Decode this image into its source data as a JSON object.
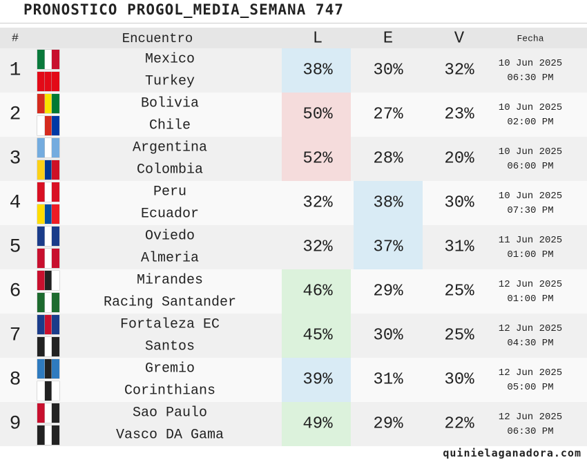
{
  "header": {
    "title": "PRONOSTICO PROGOL_MEDIA_SEMANA 747"
  },
  "table": {
    "columns": [
      "#",
      "Encuentro",
      "L",
      "E",
      "V",
      "Fecha"
    ],
    "rows": [
      {
        "num": "1",
        "home": "Mexico",
        "away": "Turkey",
        "L": "38%",
        "E": "30%",
        "V": "32%",
        "date": "10 Jun 2025",
        "time": "06:30 PM",
        "highlight": "L",
        "highlight_color": "#d9ebf5"
      },
      {
        "num": "2",
        "home": "Bolivia",
        "away": "Chile",
        "L": "50%",
        "E": "27%",
        "V": "23%",
        "date": "10 Jun 2025",
        "time": "02:00 PM",
        "highlight": "L",
        "highlight_color": "#f5dcdc"
      },
      {
        "num": "3",
        "home": "Argentina",
        "away": "Colombia",
        "L": "52%",
        "E": "28%",
        "V": "20%",
        "date": "10 Jun 2025",
        "time": "06:00 PM",
        "highlight": "L",
        "highlight_color": "#f5dcdc"
      },
      {
        "num": "4",
        "home": "Peru",
        "away": "Ecuador",
        "L": "32%",
        "E": "38%",
        "V": "30%",
        "date": "10 Jun 2025",
        "time": "07:30 PM",
        "highlight": "E",
        "highlight_color": "#d9ebf5"
      },
      {
        "num": "5",
        "home": "Oviedo",
        "away": "Almeria",
        "L": "32%",
        "E": "37%",
        "V": "31%",
        "date": "11 Jun 2025",
        "time": "01:00 PM",
        "highlight": "E",
        "highlight_color": "#d9ebf5"
      },
      {
        "num": "6",
        "home": "Mirandes",
        "away": "Racing Santander",
        "L": "46%",
        "E": "29%",
        "V": "25%",
        "date": "12 Jun 2025",
        "time": "01:00 PM",
        "highlight": "L",
        "highlight_color": "#dcf2dc"
      },
      {
        "num": "7",
        "home": "Fortaleza EC",
        "away": "Santos",
        "L": "45%",
        "E": "30%",
        "V": "25%",
        "date": "12 Jun 2025",
        "time": "04:30 PM",
        "highlight": "L",
        "highlight_color": "#dcf2dc"
      },
      {
        "num": "8",
        "home": "Gremio",
        "away": "Corinthians",
        "L": "39%",
        "E": "31%",
        "V": "30%",
        "date": "12 Jun 2025",
        "time": "05:00 PM",
        "highlight": "L",
        "highlight_color": "#d9ebf5"
      },
      {
        "num": "9",
        "home": "Sao Paulo",
        "away": "Vasco DA Gama",
        "L": "49%",
        "E": "29%",
        "V": "22%",
        "date": "12 Jun 2025",
        "time": "06:30 PM",
        "highlight": "L",
        "highlight_color": "#dcf2dc"
      }
    ]
  },
  "footer": {
    "site": "quinielaganadora.com"
  }
}
